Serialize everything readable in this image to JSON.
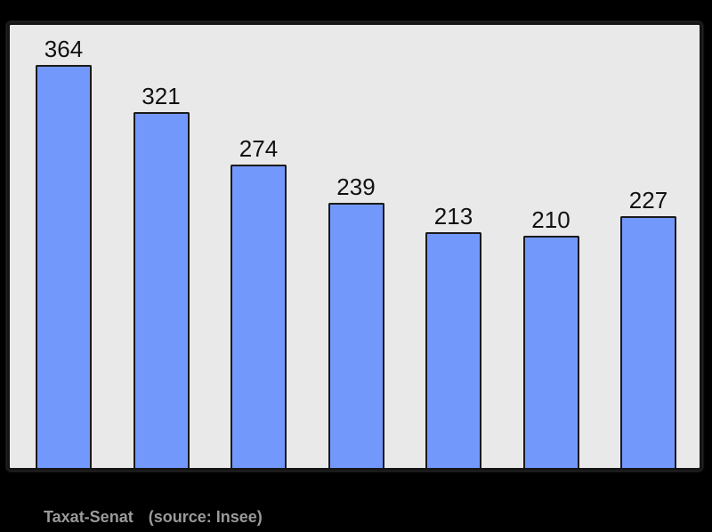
{
  "caption": {
    "place": "Taxat-Senat",
    "source": "(source: Insee)"
  },
  "chart_data": {
    "type": "bar",
    "values": [
      364,
      321,
      274,
      239,
      213,
      210,
      227
    ],
    "title": "",
    "xlabel": "",
    "ylabel": "",
    "ylim": [
      0,
      400
    ],
    "grid": false,
    "legend": "none",
    "data_labels_shown": true,
    "colors": {
      "bar_fill": "#7398fb",
      "bar_border": "#1a1a1a",
      "plot_bg": "#e9e9e9",
      "page_bg": "#000000",
      "label_text": "#111111",
      "caption_text": "#9a9a9a"
    }
  }
}
